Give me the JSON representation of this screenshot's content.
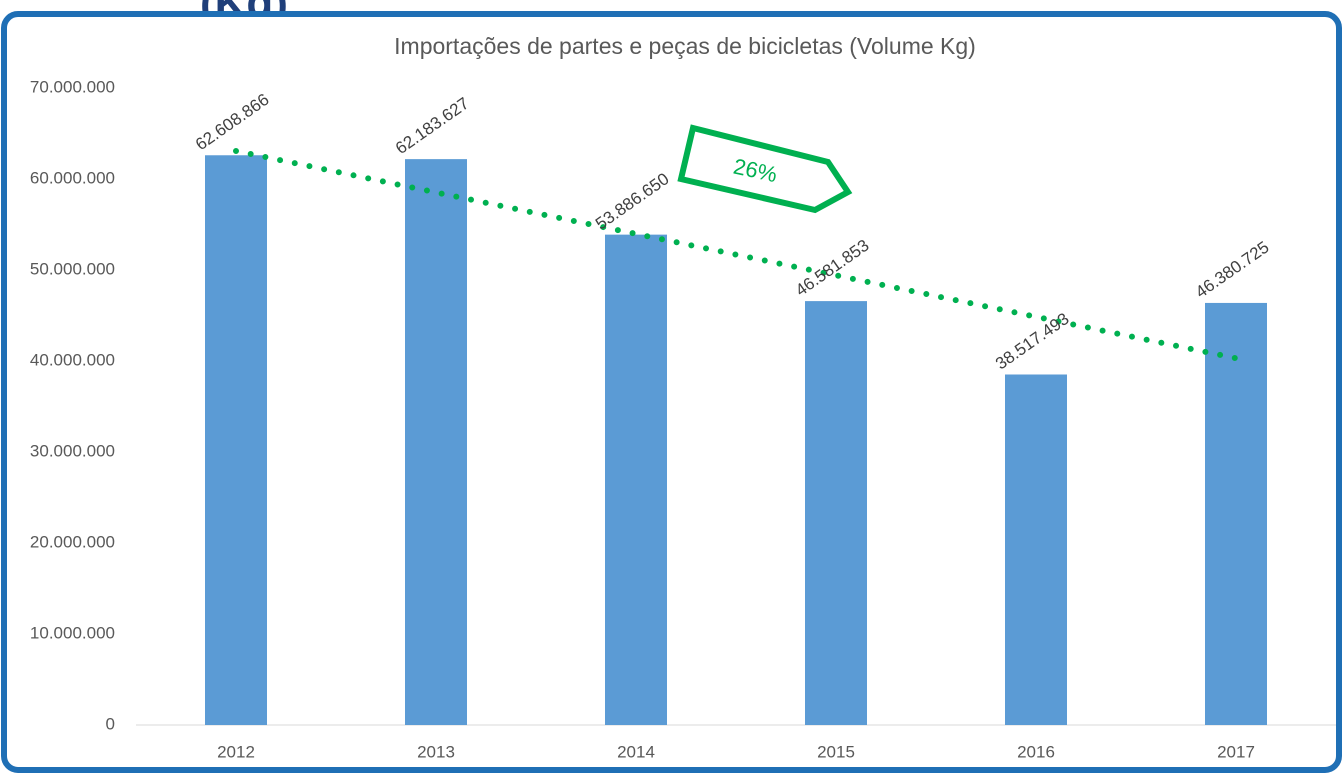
{
  "chart_data": {
    "type": "bar",
    "heading": "(Kg)",
    "title": "Importações de partes e peças de bicicletas (Volume Kg)",
    "categories": [
      "2012",
      "2013",
      "2014",
      "2015",
      "2016",
      "2017"
    ],
    "values": [
      62608866,
      62183627,
      53886650,
      46581853,
      38517493,
      46380725
    ],
    "value_labels": [
      "62.608.866",
      "62.183.627",
      "53.886.650",
      "46.581.853",
      "38.517.493",
      "46.380.725"
    ],
    "color": "#5b9bd5",
    "ylim": [
      0,
      70000000
    ],
    "yticks": [
      0,
      {
        "value": 10000000,
        "label": "10.000.000"
      },
      {
        "value": 20000000,
        "label": "20.000.000"
      },
      {
        "value": 30000000,
        "label": "30.000.000"
      },
      {
        "value": 40000000,
        "label": "40.000.000"
      },
      {
        "value": 50000000,
        "label": "50.000.000"
      },
      {
        "value": 60000000,
        "label": "60.000.000"
      },
      {
        "value": 70000000,
        "label": "70.000.000"
      }
    ],
    "trendline": "linear",
    "trendline_color": "#00b050",
    "annotation": "26%"
  }
}
